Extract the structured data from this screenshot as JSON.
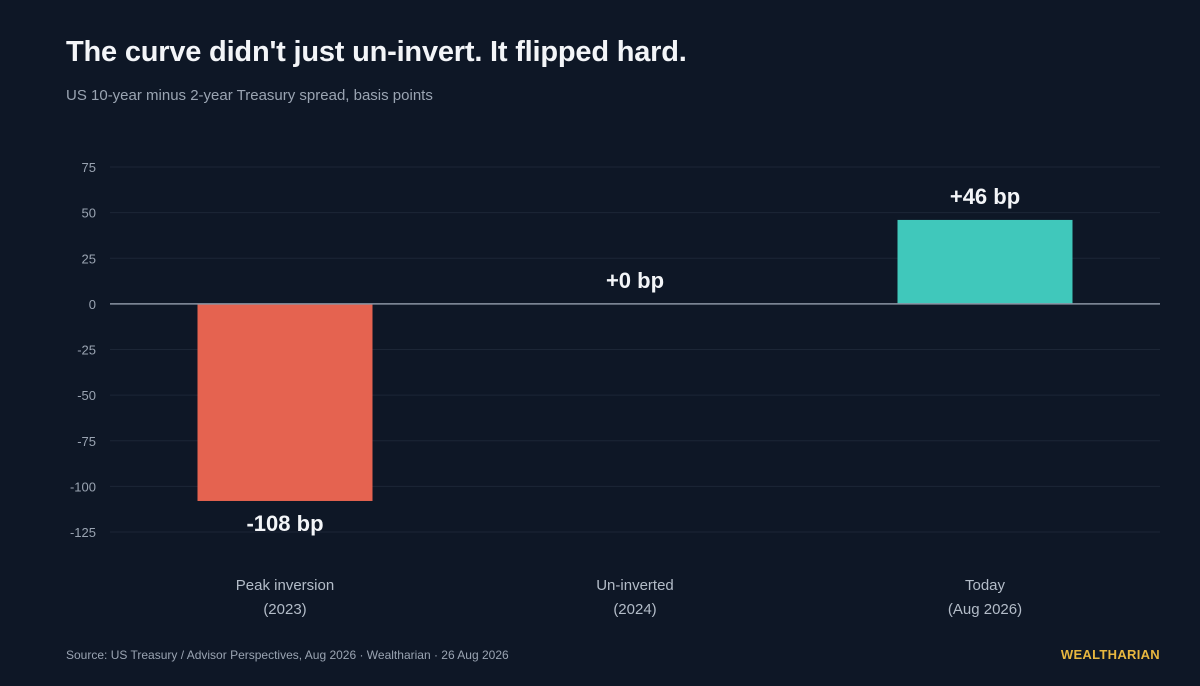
{
  "title": "The curve didn't just un-invert. It flipped hard.",
  "subtitle": "US 10-year minus 2-year Treasury spread, basis points",
  "footer": {
    "source": "Source: US Treasury / Advisor Perspectives, Aug 2026 · Wealtharian · 26 Aug 2026",
    "brand": "WEALTHARIAN"
  },
  "colors": {
    "background": "#0e1726",
    "negative": "#e56350",
    "positive": "#40c8bb",
    "grid": "#1c2636",
    "zero_line": "#8a94a3",
    "tick_text": "#9aa4b2",
    "brand": "#e8b73f"
  },
  "chart_data": {
    "type": "bar",
    "categories": [
      [
        "Peak inversion",
        "(2023)"
      ],
      [
        "Un-inverted",
        "(2024)"
      ],
      [
        "Today",
        "(Aug 2026)"
      ]
    ],
    "values": [
      -108,
      0,
      46
    ],
    "data_labels": [
      "-108 bp",
      "+0 bp",
      "+46 bp"
    ],
    "bar_colors": [
      "#e56350",
      "#40c8bb",
      "#40c8bb"
    ],
    "yticks": [
      75,
      50,
      25,
      0,
      -25,
      -50,
      -75,
      -100,
      -125
    ],
    "ylim": [
      -125,
      75
    ],
    "grid": true,
    "legend": "none",
    "xlabel": "",
    "ylabel": ""
  }
}
